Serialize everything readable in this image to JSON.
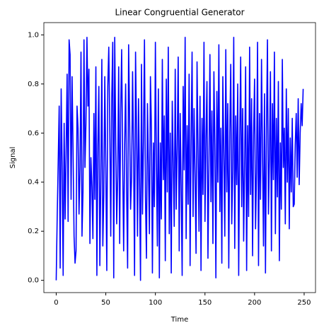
{
  "chart_data": {
    "type": "line",
    "title": "Linear Congruential Generator",
    "xlabel": "Time",
    "ylabel": "Signal",
    "x": [
      0,
      1,
      2,
      3,
      4,
      5,
      6,
      7,
      8,
      9,
      10,
      11,
      12,
      13,
      14,
      15,
      16,
      17,
      18,
      19,
      20,
      21,
      22,
      23,
      24,
      25,
      26,
      27,
      28,
      29,
      30,
      31,
      32,
      33,
      34,
      35,
      36,
      37,
      38,
      39,
      40,
      41,
      42,
      43,
      44,
      45,
      46,
      47,
      48,
      49,
      50,
      51,
      52,
      53,
      54,
      55,
      56,
      57,
      58,
      59,
      60,
      61,
      62,
      63,
      64,
      65,
      66,
      67,
      68,
      69,
      70,
      71,
      72,
      73,
      74,
      75,
      76,
      77,
      78,
      79,
      80,
      81,
      82,
      83,
      84,
      85,
      86,
      87,
      88,
      89,
      90,
      91,
      92,
      93,
      94,
      95,
      96,
      97,
      98,
      99,
      100,
      101,
      102,
      103,
      104,
      105,
      106,
      107,
      108,
      109,
      110,
      111,
      112,
      113,
      114,
      115,
      116,
      117,
      118,
      119,
      120,
      121,
      122,
      123,
      124,
      125,
      126,
      127,
      128,
      129,
      130,
      131,
      132,
      133,
      134,
      135,
      136,
      137,
      138,
      139,
      140,
      141,
      142,
      143,
      144,
      145,
      146,
      147,
      148,
      149,
      150,
      151,
      152,
      153,
      154,
      155,
      156,
      157,
      158,
      159,
      160,
      161,
      162,
      163,
      164,
      165,
      166,
      167,
      168,
      169,
      170,
      171,
      172,
      173,
      174,
      175,
      176,
      177,
      178,
      179,
      180,
      181,
      182,
      183,
      184,
      185,
      186,
      187,
      188,
      189,
      190,
      191,
      192,
      193,
      194,
      195,
      196,
      197,
      198,
      199,
      200,
      201,
      202,
      203,
      204,
      205,
      206,
      207,
      208,
      209,
      210,
      211,
      212,
      213,
      214,
      215,
      216,
      217,
      218,
      219,
      220,
      221,
      222,
      223,
      224,
      225,
      226,
      227,
      228,
      229,
      230,
      231,
      232,
      233,
      234,
      235,
      236,
      237,
      238,
      239,
      240,
      241,
      242,
      243,
      244,
      245,
      246,
      247,
      248,
      249
    ],
    "series": [
      {
        "name": "Signal",
        "color": "#0000ff",
        "values": [
          0,
          0.26,
          0.48,
          0.71,
          0.05,
          0.78,
          0.46,
          0.02,
          0.64,
          0.25,
          0.52,
          0.84,
          0.24,
          0.98,
          0.92,
          0.33,
          0.83,
          0.53,
          0.18,
          0.07,
          0.12,
          0.71,
          0.62,
          0.27,
          0.46,
          0.93,
          0.18,
          0.36,
          0.98,
          0.46,
          0.64,
          0.99,
          0.71,
          0.86,
          0.15,
          0.5,
          0.38,
          0.17,
          0.68,
          0.33,
          0.87,
          0.02,
          0.55,
          0.79,
          0.06,
          0.41,
          0.9,
          0.14,
          0.35,
          0.83,
          0.46,
          0.04,
          0.79,
          0.95,
          0.63,
          0.18,
          0.74,
          0.97,
          0.01,
          0.99,
          0.58,
          0.23,
          0.42,
          0.87,
          0.15,
          0.69,
          0.94,
          0.48,
          0.12,
          0.55,
          0.8,
          0.37,
          0.05,
          0.96,
          0.66,
          0.29,
          0.42,
          0.85,
          0.52,
          0.02,
          0.93,
          0.61,
          0.18,
          0.74,
          0.4,
          0.0,
          0.88,
          0.27,
          0.57,
          0.98,
          0.34,
          0.09,
          0.72,
          0.46,
          0.19,
          0.83,
          0.62,
          0.03,
          0.56,
          0.3,
          0.97,
          0.49,
          0.14,
          0.78,
          0.01,
          0.56,
          0.25,
          0.9,
          0.41,
          0.67,
          0.08,
          0.82,
          0.36,
          0.95,
          0.19,
          0.6,
          0.03,
          0.73,
          0.48,
          0.22,
          0.86,
          0.29,
          0.54,
          0.91,
          0.12,
          0.68,
          0.38,
          0.02,
          0.79,
          0.45,
          0.99,
          0.17,
          0.63,
          0.31,
          0.84,
          0.06,
          0.57,
          0.93,
          0.26,
          0.7,
          0.43,
          0.11,
          0.89,
          0.53,
          0.2,
          0.75,
          0.04,
          0.66,
          0.35,
          0.97,
          0.24,
          0.58,
          0.81,
          0.09,
          0.47,
          0.92,
          0.32,
          0.69,
          0.15,
          0.85,
          0.55,
          0.01,
          0.77,
          0.4,
          0.96,
          0.28,
          0.62,
          0.07,
          0.83,
          0.51,
          0.18,
          0.94,
          0.36,
          0.72,
          0.05,
          0.6,
          0.88,
          0.23,
          0.45,
          0.99,
          0.13,
          0.67,
          0.39,
          0.8,
          0.02,
          0.57,
          0.91,
          0.3,
          0.7,
          0.16,
          0.48,
          0.87,
          0.04,
          0.63,
          0.26,
          0.95,
          0.35,
          0.74,
          0.1,
          0.59,
          0.82,
          0.21,
          0.44,
          0.97,
          0.06,
          0.68,
          0.33,
          0.9,
          0.52,
          0.14,
          0.76,
          0.03,
          0.61,
          0.98,
          0.27,
          0.5,
          0.85,
          0.12,
          0.72,
          0.41,
          0.93,
          0.19,
          0.66,
          0.34,
          0.81,
          0.08,
          0.56,
          0.29,
          0.9,
          0.46,
          0.62,
          0.23,
          0.78,
          0.4,
          0.7,
          0.21,
          0.58,
          0.36,
          0.66,
          0.3,
          0.31,
          0.55,
          0.68,
          0.42,
          0.74,
          0.39,
          0.6,
          0.72,
          0.63,
          0.78
        ]
      }
    ],
    "xlim": [
      -12.45,
      261.45
    ],
    "ylim": [
      -0.05,
      1.05
    ],
    "xticks": [
      0,
      50,
      100,
      150,
      200,
      250
    ],
    "yticks": [
      {
        "value": 0,
        "label": "0.0"
      },
      {
        "value": 0.2,
        "label": "0.2"
      },
      {
        "value": 0.4,
        "label": "0.4"
      },
      {
        "value": 0.6,
        "label": "0.6"
      },
      {
        "value": 0.8,
        "label": "0.8"
      },
      {
        "value": 1,
        "label": "1.0"
      }
    ]
  }
}
